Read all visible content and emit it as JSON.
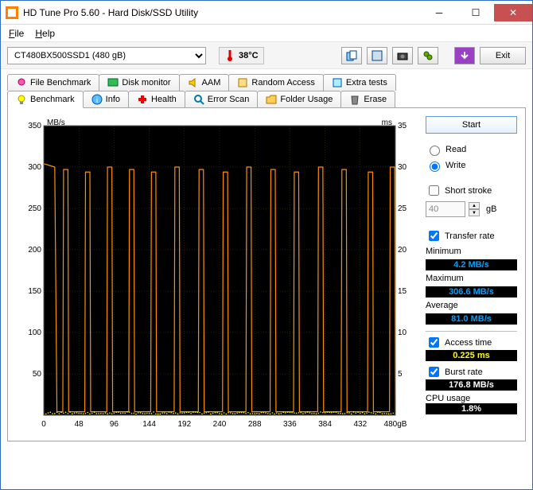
{
  "window": {
    "title": "HD Tune Pro 5.60 - Hard Disk/SSD Utility"
  },
  "menubar": {
    "file": "File",
    "help": "Help"
  },
  "toolbar": {
    "drive": "CT480BX500SSD1 (480 gB)",
    "temp": "38°C",
    "exit": "Exit"
  },
  "tabs_top": [
    "File Benchmark",
    "Disk monitor",
    "AAM",
    "Random Access",
    "Extra tests"
  ],
  "tabs_bottom": [
    "Benchmark",
    "Info",
    "Health",
    "Error Scan",
    "Folder Usage",
    "Erase"
  ],
  "chart": {
    "type": "line",
    "background": "#000000",
    "grid_color": "#404000",
    "axis_color": "#c0c0c0",
    "y_left_label": "MB/s",
    "y_right_label": "ms",
    "x_unit": "gB",
    "xlim": [
      0,
      480
    ],
    "ylim_left": [
      0,
      350
    ],
    "ylim_right": [
      0,
      35
    ],
    "x_ticks": [
      0,
      48,
      96,
      144,
      192,
      240,
      288,
      336,
      384,
      432,
      480
    ],
    "y_left_ticks": [
      50,
      100,
      150,
      200,
      250,
      300,
      350
    ],
    "y_right_ticks": [
      5,
      10,
      15,
      20,
      25,
      30,
      35
    ],
    "transfer_color": "#ff9000",
    "access_color": "#ffff00",
    "transfer_peaks_x": [
      0,
      30,
      60,
      90,
      120,
      150,
      182,
      215,
      248,
      280,
      313,
      345,
      378,
      410,
      446,
      476
    ],
    "transfer_peak_y": 300,
    "transfer_trough_y": 4.2,
    "peak_width": 8,
    "initial_plateau_end": 15
  },
  "panel": {
    "start": "Start",
    "read": "Read",
    "write": "Write",
    "mode": "write",
    "short_stroke": "Short stroke",
    "short_stroke_checked": false,
    "short_stroke_value": "40",
    "short_stroke_unit": "gB",
    "transfer_rate": "Transfer rate",
    "transfer_rate_checked": true,
    "minimum_label": "Minimum",
    "minimum_value": "4.2 MB/s",
    "minimum_color": "#00a0ff",
    "maximum_label": "Maximum",
    "maximum_value": "306.6 MB/s",
    "maximum_color": "#00a0ff",
    "average_label": "Average",
    "average_value": "81.0 MB/s",
    "average_color": "#00a0ff",
    "access_time": "Access time",
    "access_time_checked": true,
    "access_time_value": "0.225 ms",
    "access_time_color": "#ffff00",
    "burst_rate": "Burst rate",
    "burst_rate_checked": true,
    "burst_rate_value": "176.8 MB/s",
    "burst_rate_color": "#ffffff",
    "cpu_usage": "CPU usage",
    "cpu_usage_value": "1.8%",
    "cpu_usage_color": "#ffffff"
  }
}
